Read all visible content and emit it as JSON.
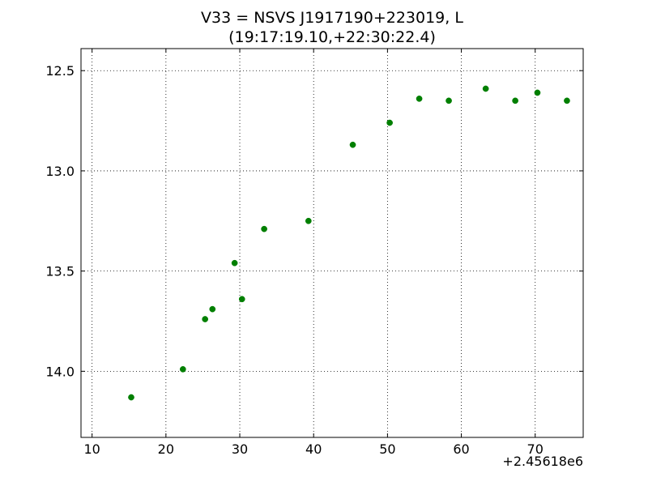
{
  "chart_data": {
    "type": "scatter",
    "title": "V33 = NSVS J1917190+223019, L",
    "subtitle": "(19:17:19.10,+22:30:22.4)",
    "xlabel": "",
    "ylabel": "",
    "x_offset_label": "+2.45618e6",
    "xlim": [
      8.5,
      76.5
    ],
    "ylim": [
      14.33,
      12.39
    ],
    "y_inverted": true,
    "grid": true,
    "x_ticks": [
      10,
      20,
      30,
      40,
      50,
      60,
      70
    ],
    "x_tick_labels": [
      "10",
      "20",
      "30",
      "40",
      "50",
      "60",
      "70"
    ],
    "y_ticks": [
      12.5,
      13.0,
      13.5,
      14.0
    ],
    "y_tick_labels": [
      "12.5",
      "13.0",
      "13.5",
      "14.0"
    ],
    "marker_color": "#007f00",
    "points": [
      {
        "x": 15.3,
        "y": 14.13
      },
      {
        "x": 22.3,
        "y": 13.99
      },
      {
        "x": 25.3,
        "y": 13.74
      },
      {
        "x": 26.3,
        "y": 13.69
      },
      {
        "x": 29.3,
        "y": 13.46
      },
      {
        "x": 30.3,
        "y": 13.64
      },
      {
        "x": 33.3,
        "y": 13.29
      },
      {
        "x": 39.3,
        "y": 13.25
      },
      {
        "x": 45.3,
        "y": 12.87
      },
      {
        "x": 50.3,
        "y": 12.76
      },
      {
        "x": 54.3,
        "y": 12.64
      },
      {
        "x": 58.3,
        "y": 12.65
      },
      {
        "x": 63.3,
        "y": 12.59
      },
      {
        "x": 67.3,
        "y": 12.65
      },
      {
        "x": 70.3,
        "y": 12.61
      },
      {
        "x": 74.3,
        "y": 12.65
      }
    ]
  }
}
